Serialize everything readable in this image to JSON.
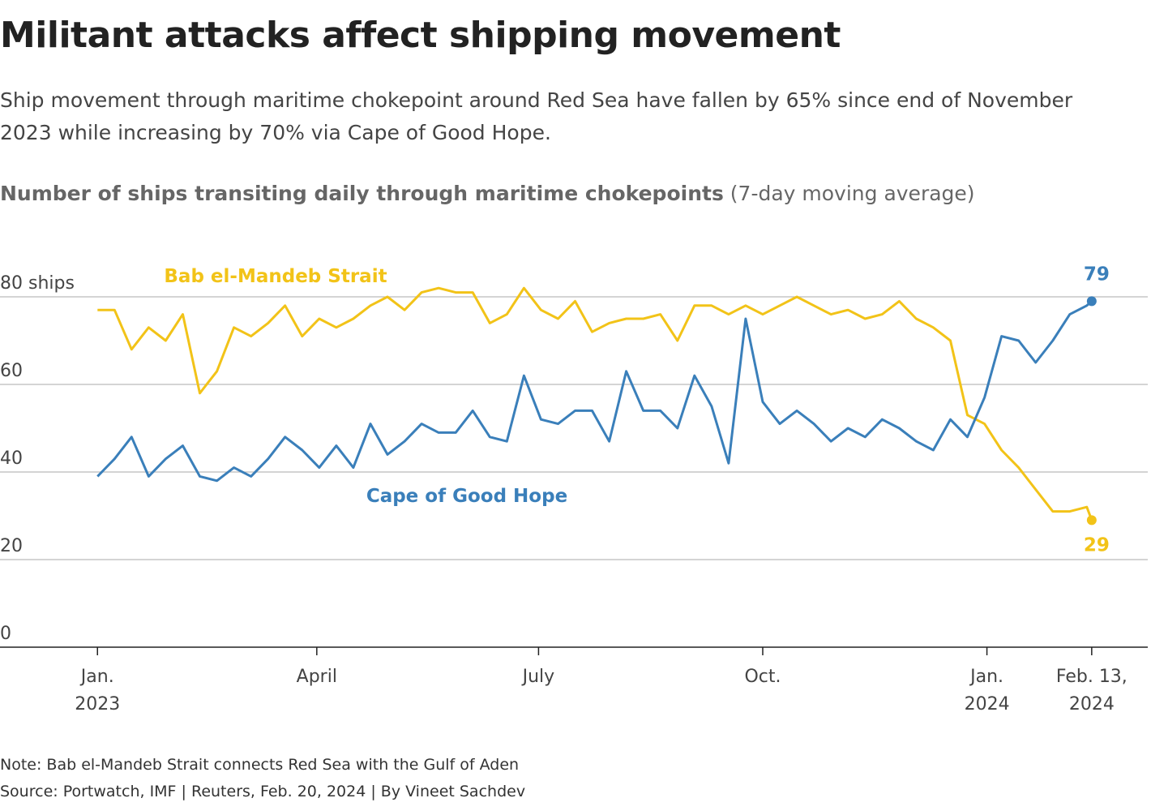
{
  "chart_data": {
    "type": "line",
    "title": "Militant attacks affect shipping movement",
    "subtitle": "Ship movement through maritime chokepoint around Red Sea have fallen by 65% since end of November 2023 while increasing by 70% via Cape of Good Hope.",
    "chart_heading": "Number of ships transiting daily through maritime chokepoints",
    "chart_heading_note": "(7-day moving average)",
    "note": "Note: Bab el-Mandeb Strait connects Red Sea with the Gulf of Aden",
    "source": "Source: Portwatch, IMF | Reuters, Feb. 20, 2024 | By Vineet Sachdev",
    "x": [
      "2023-01-01",
      "2023-01-08",
      "2023-01-15",
      "2023-01-22",
      "2023-01-29",
      "2023-02-05",
      "2023-02-12",
      "2023-02-19",
      "2023-02-26",
      "2023-03-05",
      "2023-03-12",
      "2023-03-19",
      "2023-03-26",
      "2023-04-02",
      "2023-04-09",
      "2023-04-16",
      "2023-04-23",
      "2023-04-30",
      "2023-05-07",
      "2023-05-14",
      "2023-05-21",
      "2023-05-28",
      "2023-06-04",
      "2023-06-11",
      "2023-06-18",
      "2023-06-25",
      "2023-07-02",
      "2023-07-09",
      "2023-07-16",
      "2023-07-23",
      "2023-07-30",
      "2023-08-06",
      "2023-08-13",
      "2023-08-20",
      "2023-08-27",
      "2023-09-03",
      "2023-09-10",
      "2023-09-17",
      "2023-09-24",
      "2023-10-01",
      "2023-10-08",
      "2023-10-15",
      "2023-10-22",
      "2023-10-29",
      "2023-11-05",
      "2023-11-12",
      "2023-11-19",
      "2023-11-26",
      "2023-12-03",
      "2023-12-10",
      "2023-12-17",
      "2023-12-24",
      "2023-12-31",
      "2024-01-07",
      "2024-01-14",
      "2024-01-21",
      "2024-01-28",
      "2024-02-04",
      "2024-02-11",
      "2024-02-13"
    ],
    "series": [
      {
        "name": "Bab el-Mandeb Strait",
        "color": "#f2c318",
        "values": [
          77,
          77,
          68,
          73,
          70,
          76,
          58,
          63,
          73,
          71,
          74,
          78,
          71,
          75,
          73,
          75,
          78,
          80,
          77,
          81,
          82,
          81,
          81,
          74,
          76,
          82,
          77,
          75,
          79,
          72,
          74,
          75,
          75,
          76,
          70,
          78,
          78,
          76,
          78,
          76,
          78,
          80,
          78,
          76,
          77,
          75,
          76,
          79,
          75,
          73,
          70,
          53,
          51,
          45,
          41,
          36,
          31,
          31,
          32,
          29
        ]
      },
      {
        "name": "Cape of Good Hope",
        "color": "#3a7fba",
        "values": [
          39,
          43,
          48,
          39,
          43,
          46,
          39,
          38,
          41,
          39,
          43,
          48,
          45,
          41,
          46,
          41,
          51,
          44,
          47,
          51,
          49,
          49,
          54,
          48,
          47,
          62,
          52,
          51,
          54,
          54,
          47,
          63,
          54,
          54,
          50,
          62,
          55,
          42,
          75,
          56,
          51,
          54,
          51,
          47,
          50,
          48,
          52,
          50,
          47,
          45,
          52,
          48,
          57,
          71,
          70,
          65,
          70,
          76,
          78,
          79
        ]
      }
    ],
    "xlim": [
      "2022-11-22",
      "2024-03-07"
    ],
    "xticks": [
      {
        "value": "2023-01-01",
        "label": "Jan.\n2023"
      },
      {
        "value": "2023-04-01",
        "label": "April"
      },
      {
        "value": "2023-07-01",
        "label": "July"
      },
      {
        "value": "2023-10-01",
        "label": "Oct."
      },
      {
        "value": "2024-01-01",
        "label": "Jan.\n2024"
      },
      {
        "value": "2024-02-13",
        "label": "Feb. 13,\n2024"
      }
    ],
    "ylim": [
      0,
      88
    ],
    "yticks": [
      0,
      20,
      40,
      60,
      {
        "value": 80,
        "label": "80 ships"
      }
    ],
    "grid": true
  }
}
